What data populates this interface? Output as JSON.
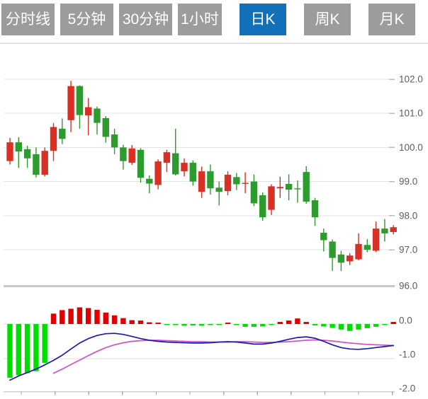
{
  "tabs": {
    "items": [
      {
        "label": "分时线",
        "active": false
      },
      {
        "label": "5分钟",
        "active": false
      },
      {
        "label": "30分钟",
        "active": false
      },
      {
        "label": "1小时",
        "active": false
      },
      {
        "label": "日K",
        "active": true
      },
      {
        "label": "周K",
        "active": false
      },
      {
        "label": "月K",
        "active": false
      }
    ]
  },
  "chart_data": {
    "type": "candlestick+macd",
    "title": "",
    "legend": "none",
    "grid": "horizontal-only",
    "price_axis": {
      "side": "right",
      "labels": [
        "102.0",
        "101.0",
        "100.0",
        "99.0",
        "98.0",
        "97.0",
        "96.0"
      ],
      "values": [
        102.0,
        101.0,
        100.0,
        99.0,
        98.0,
        97.0,
        96.0
      ],
      "ylim": [
        95.9,
        103.0
      ]
    },
    "macd_axis": {
      "side": "right",
      "labels": [
        "0.0",
        "-1.0",
        "-2.0"
      ],
      "values": [
        0.0,
        -1.0,
        -2.0
      ],
      "ylim": [
        -2.1,
        0.6
      ]
    },
    "candles_ohlc": [
      [
        99.6,
        100.28,
        99.5,
        100.15
      ],
      [
        100.15,
        100.3,
        99.4,
        99.88
      ],
      [
        99.95,
        100.05,
        99.4,
        99.68
      ],
      [
        99.8,
        100.0,
        99.12,
        99.2
      ],
      [
        99.2,
        100.0,
        99.15,
        99.9
      ],
      [
        99.9,
        100.72,
        99.6,
        100.6
      ],
      [
        100.55,
        100.85,
        100.1,
        100.25
      ],
      [
        100.8,
        101.95,
        100.45,
        101.8
      ],
      [
        101.8,
        101.82,
        100.55,
        100.95
      ],
      [
        100.94,
        101.45,
        100.36,
        101.18
      ],
      [
        101.14,
        101.2,
        100.38,
        100.72
      ],
      [
        100.86,
        100.92,
        100.14,
        100.31
      ],
      [
        100.38,
        100.55,
        99.8,
        100.0
      ],
      [
        100.0,
        100.08,
        99.35,
        99.6
      ],
      [
        99.55,
        100.07,
        99.49,
        99.97
      ],
      [
        99.93,
        99.98,
        98.97,
        99.11
      ],
      [
        99.08,
        99.18,
        98.66,
        98.94
      ],
      [
        98.9,
        99.65,
        98.77,
        99.59
      ],
      [
        99.55,
        99.93,
        99.28,
        99.86
      ],
      [
        99.83,
        100.55,
        99.18,
        99.21
      ],
      [
        99.3,
        99.68,
        99.15,
        99.55
      ],
      [
        99.55,
        99.62,
        98.88,
        99.0
      ],
      [
        98.7,
        99.44,
        98.52,
        99.3
      ],
      [
        99.3,
        99.5,
        98.62,
        98.8
      ],
      [
        98.82,
        99.0,
        98.3,
        98.7
      ],
      [
        98.72,
        99.3,
        98.6,
        99.2
      ],
      [
        99.13,
        99.25,
        98.75,
        98.92
      ],
      [
        98.94,
        99.27,
        98.66,
        98.96
      ],
      [
        99.0,
        99.21,
        98.28,
        98.36
      ],
      [
        98.6,
        98.68,
        97.85,
        97.95
      ],
      [
        98.17,
        98.92,
        98.02,
        98.86
      ],
      [
        98.8,
        99.14,
        98.52,
        98.84
      ],
      [
        98.93,
        99.21,
        98.45,
        98.76
      ],
      [
        98.8,
        99.03,
        98.38,
        98.78
      ],
      [
        99.28,
        99.45,
        98.35,
        98.41
      ],
      [
        98.45,
        98.52,
        97.7,
        97.95
      ],
      [
        97.5,
        97.62,
        96.95,
        97.28
      ],
      [
        97.24,
        97.3,
        96.38,
        96.76
      ],
      [
        96.86,
        96.97,
        96.38,
        96.62
      ],
      [
        96.66,
        96.9,
        96.55,
        96.83
      ],
      [
        96.72,
        97.48,
        96.69,
        97.17
      ],
      [
        97.14,
        97.31,
        96.93,
        97.0
      ],
      [
        96.97,
        97.83,
        96.93,
        97.62
      ],
      [
        97.62,
        97.9,
        97.24,
        97.48
      ],
      [
        97.52,
        97.72,
        97.45,
        97.66
      ]
    ],
    "macd": {
      "histogram": [
        -1.55,
        -1.48,
        -1.42,
        -1.36,
        -1.12,
        0.3,
        0.4,
        0.44,
        0.48,
        0.46,
        0.41,
        0.33,
        0.25,
        0.17,
        0.11,
        0.1,
        0.05,
        0.04,
        -0.02,
        -0.03,
        -0.05,
        -0.04,
        -0.05,
        -0.03,
        -0.02,
        0.04,
        -0.03,
        -0.08,
        -0.08,
        -0.07,
        -0.02,
        0.06,
        0.1,
        0.16,
        0.06,
        -0.04,
        -0.07,
        -0.11,
        -0.16,
        -0.2,
        -0.16,
        -0.12,
        -0.08,
        -0.03,
        0.06
      ],
      "dif": [
        -1.62,
        -1.5,
        -1.4,
        -1.3,
        -1.18,
        -1.05,
        -0.9,
        -0.72,
        -0.55,
        -0.42,
        -0.33,
        -0.28,
        -0.27,
        -0.3,
        -0.36,
        -0.42,
        -0.47,
        -0.5,
        -0.52,
        -0.53,
        -0.54,
        -0.55,
        -0.55,
        -0.54,
        -0.52,
        -0.51,
        -0.52,
        -0.55,
        -0.58,
        -0.58,
        -0.55,
        -0.5,
        -0.44,
        -0.39,
        -0.37,
        -0.41,
        -0.5,
        -0.6,
        -0.68,
        -0.72,
        -0.73,
        -0.71,
        -0.68,
        -0.65,
        -0.62
      ],
      "dea": [
        null,
        null,
        null,
        null,
        null,
        -1.42,
        -1.3,
        -1.17,
        -1.04,
        -0.91,
        -0.79,
        -0.68,
        -0.6,
        -0.54,
        -0.5,
        -0.48,
        -0.47,
        -0.47,
        -0.48,
        -0.49,
        -0.5,
        -0.51,
        -0.51,
        -0.52,
        -0.52,
        -0.52,
        -0.51,
        -0.51,
        -0.52,
        -0.53,
        -0.53,
        -0.52,
        -0.51,
        -0.49,
        -0.47,
        -0.46,
        -0.47,
        -0.49,
        -0.52,
        -0.55,
        -0.57,
        -0.59,
        -0.6,
        -0.61,
        -0.62
      ]
    },
    "colors": {
      "up_candle": "#d93025",
      "down_candle": "#2e9b2e",
      "hist_up": "#e00000",
      "hist_down": "#00dd00",
      "dif_line": "#1a1aae",
      "dea_line": "#d650cc",
      "grid": "#e3e3e3",
      "separator": "#c8c8c8",
      "axis_label": "#5d5d5d",
      "tab_bg": "#9c9c9c",
      "tab_active_bg": "#1270b8"
    }
  }
}
